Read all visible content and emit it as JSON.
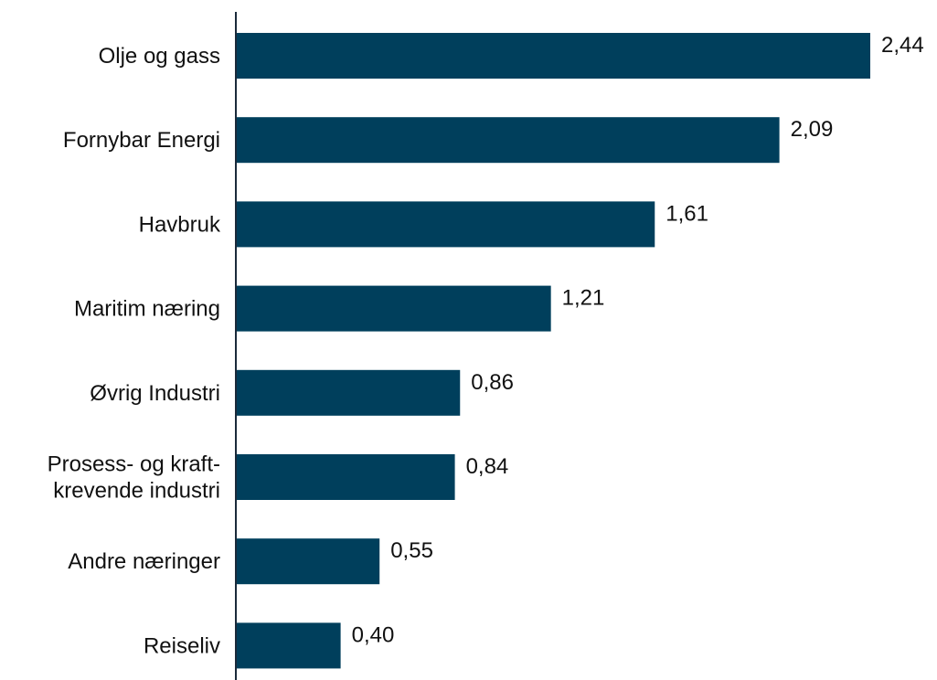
{
  "chart_data": {
    "type": "bar",
    "orientation": "horizontal",
    "categories": [
      "Olje og gass",
      "Fornybar Energi",
      "Havbruk",
      "Maritim næring",
      "Øvrig Industri",
      "Prosess- og kraft-\nkrevende industri",
      "Andre næringer",
      "Reiseliv"
    ],
    "values": [
      2.44,
      2.09,
      1.61,
      1.21,
      0.86,
      0.84,
      0.55,
      0.4
    ],
    "value_labels": [
      "2,44",
      "2,09",
      "1,61",
      "1,21",
      "0,86",
      "0,84",
      "0,55",
      "0,40"
    ],
    "title": "",
    "xlabel": "",
    "ylabel": "",
    "xlim": [
      0,
      2.44
    ],
    "grid": false,
    "bar_color": "#003f5c",
    "axis_color": "#1a2a3a"
  }
}
